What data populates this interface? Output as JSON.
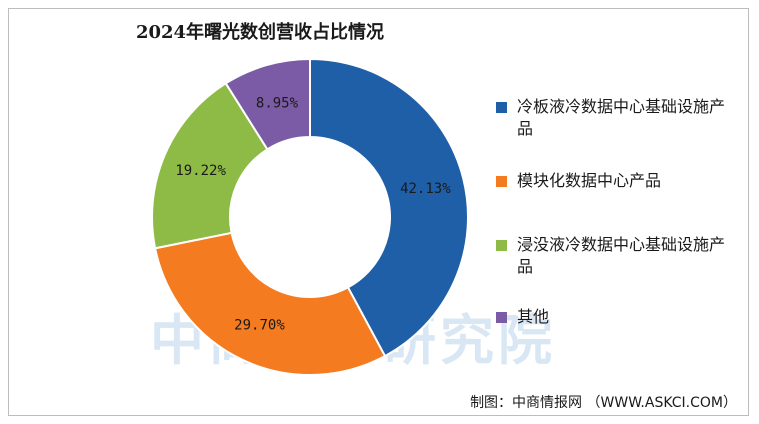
{
  "chart_data": {
    "type": "pie",
    "title": "2024年曙光数创营收占比情况",
    "series": [
      {
        "name": "冷板液冷数据中心基础设施产品",
        "value": 42.13,
        "label": "42.13%",
        "color": "#1f5fa8"
      },
      {
        "name": "模块化数据中心产品",
        "value": 29.7,
        "label": "29.70%",
        "color": "#f47b20"
      },
      {
        "name": "浸没液冷数据中心基础设施产品",
        "value": 19.22,
        "label": "19.22%",
        "color": "#8dbb45"
      },
      {
        "name": "其他",
        "value": 8.95,
        "label": "8.95%",
        "color": "#7b5aa6"
      }
    ],
    "legend_placement": "right"
  },
  "watermark": "中商产业研究院",
  "source": "制图：中商情报网 （WWW.ASKCI.COM）"
}
